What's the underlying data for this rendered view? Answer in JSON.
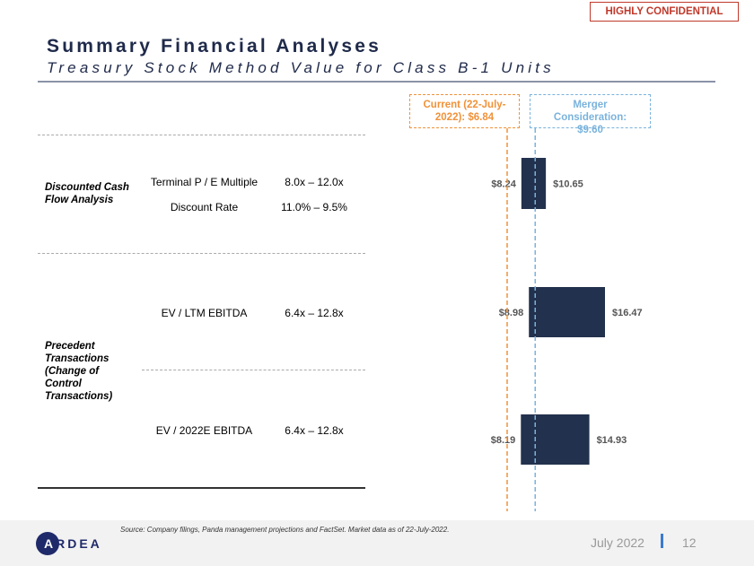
{
  "header": {
    "confidential": "HIGHLY CONFIDENTIAL",
    "title": "Summary Financial Analyses",
    "subtitle": "Treasury Stock Method Value for Class B-1 Units"
  },
  "table": {
    "groups": [
      {
        "label": "Discounted Cash Flow Analysis",
        "rows": [
          [
            "Terminal P / E Multiple",
            "8.0x – 12.0x"
          ],
          [
            "Discount Rate",
            "11.0% – 9.5%"
          ]
        ]
      },
      {
        "label": "Precedent Transactions (Change of Control Transactions)",
        "rows": [
          [
            "EV / LTM EBITDA",
            "6.4x – 12.8x"
          ],
          [
            "EV / 2022E EBITDA",
            "6.4x – 12.8x"
          ]
        ]
      }
    ]
  },
  "chart_data": {
    "type": "range-bar",
    "color": "#22314d",
    "low": [
      8.24,
      8.98,
      8.19
    ],
    "low_labels": [
      "$8.24",
      "$8.98",
      "$8.19"
    ],
    "high": [
      10.65,
      16.47,
      14.93
    ],
    "high_labels": [
      "$10.65",
      "$16.47",
      "$14.93"
    ],
    "reference_lines": [
      {
        "label": "Current (22-July-2022): $6.84",
        "value": 6.84,
        "color": "#f0923a"
      },
      {
        "label": "Merger Consideration: $9.60",
        "value": 9.6,
        "color": "#7ab3dc"
      }
    ]
  },
  "footer": {
    "source": "Source: Company filings, Panda management projections and FactSet. Market data as of 22-July-2022.",
    "logo": "ARDEA",
    "date": "July 2022",
    "page": "12"
  }
}
